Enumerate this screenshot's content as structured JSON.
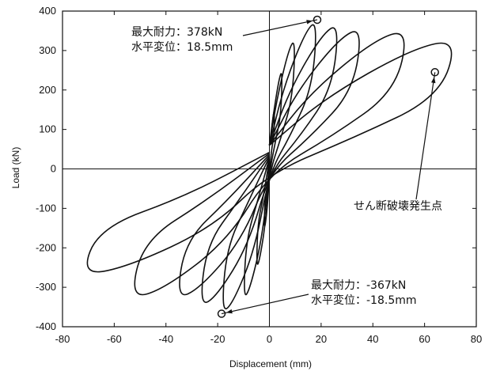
{
  "chart_data": {
    "type": "line",
    "xlabel": "Displacement (mm)",
    "ylabel": "Load (kN)",
    "xlim": [
      -80,
      80
    ],
    "ylim": [
      -400,
      400
    ],
    "x_ticks": [
      -80,
      -60,
      -40,
      -20,
      0,
      20,
      40,
      60,
      80
    ],
    "y_ticks": [
      -400,
      -300,
      -200,
      -100,
      0,
      100,
      200,
      300,
      400
    ],
    "grid": false,
    "cycles": [
      {
        "peak_pos": [
          2,
          150
        ],
        "peak_neg": [
          -2,
          -150
        ]
      },
      {
        "peak_pos": [
          5,
          250
        ],
        "peak_neg": [
          -5,
          -250
        ]
      },
      {
        "peak_pos": [
          10,
          330
        ],
        "peak_neg": [
          -10,
          -330
        ]
      },
      {
        "peak_pos": [
          18.5,
          378
        ],
        "peak_neg": [
          -18.5,
          -367
        ]
      },
      {
        "peak_pos": [
          27,
          370
        ],
        "peak_neg": [
          -27,
          -350
        ]
      },
      {
        "peak_pos": [
          36,
          360
        ],
        "peak_neg": [
          -36,
          -330
        ]
      },
      {
        "peak_pos": [
          54,
          355
        ],
        "peak_neg": [
          -54,
          -330
        ]
      },
      {
        "peak_pos": [
          73,
          330
        ],
        "peak_neg": [
          -73,
          -270
        ]
      }
    ],
    "markers": [
      {
        "x": 18.5,
        "y": 378
      },
      {
        "x": -18.5,
        "y": -367
      },
      {
        "x": 64,
        "y": 245
      }
    ],
    "annotations": {
      "max_positive": {
        "line1": "最大耐力：378kN",
        "line2": "水平変位：18.5mm"
      },
      "max_negative": {
        "line1": "最大耐力：-367kN",
        "line2": "水平変位：-18.5mm"
      },
      "shear_failure": "せん断破壊発生点"
    }
  }
}
